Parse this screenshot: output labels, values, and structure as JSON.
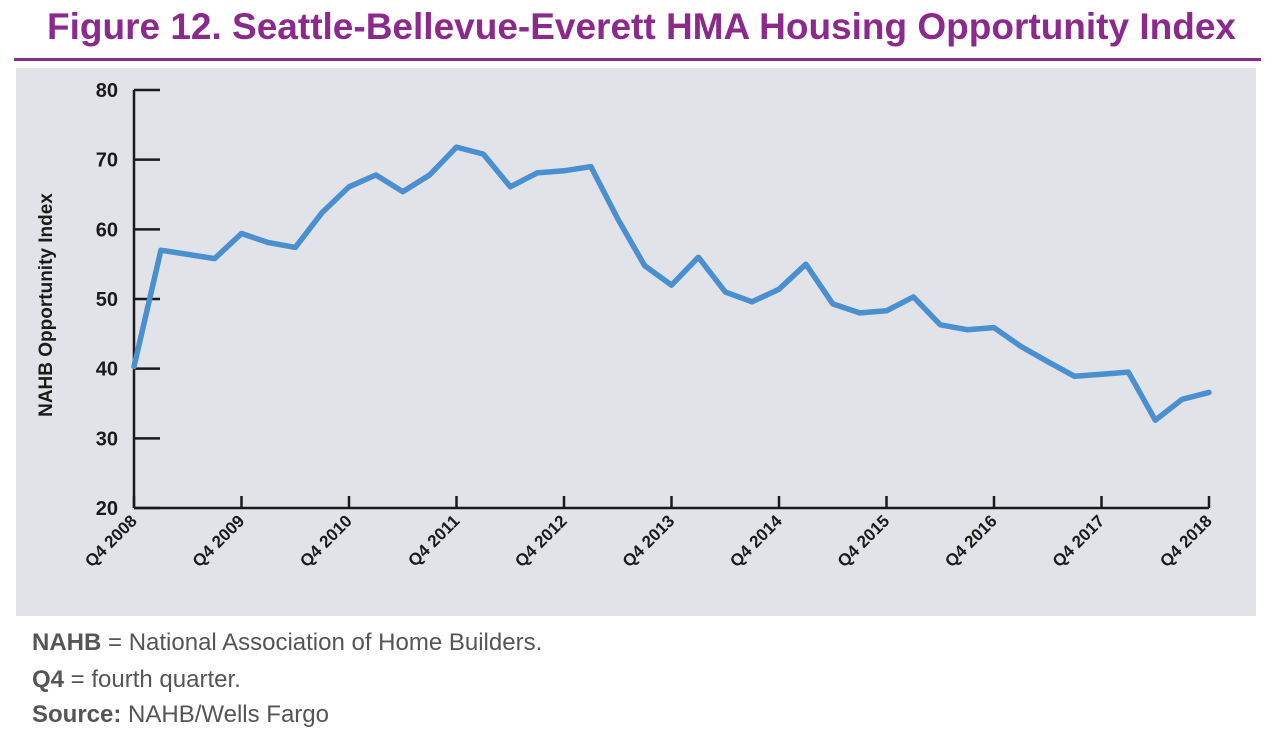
{
  "figure": {
    "title": "Figure 12. Seattle-Bellevue-Everett HMA Housing Opportunity Index"
  },
  "notes": [
    {
      "term": "NAHB",
      "sep": " = ",
      "text": "National Association of Home Builders."
    },
    {
      "term": "Q4",
      "sep": " = ",
      "text": "fourth quarter."
    },
    {
      "term": "Source:",
      "sep": " ",
      "text": "NAHB/Wells Fargo"
    }
  ],
  "colors": {
    "title": "#8b2a8c",
    "rule": "#8b2a8c",
    "plot_background": "#e2e3e8",
    "line": "#4a8fd0",
    "axis": "#1a1a1a"
  },
  "chart_data": {
    "type": "line",
    "title": "",
    "xlabel": "",
    "ylabel": "NAHB Opportunity Index",
    "ylim": [
      20,
      80
    ],
    "yticks": [
      20,
      30,
      40,
      50,
      60,
      70,
      80
    ],
    "grid": false,
    "x": [
      "Q4 2008",
      "Q1 2009",
      "Q2 2009",
      "Q3 2009",
      "Q4 2009",
      "Q1 2010",
      "Q2 2010",
      "Q3 2010",
      "Q4 2010",
      "Q1 2011",
      "Q2 2011",
      "Q3 2011",
      "Q4 2011",
      "Q1 2012",
      "Q2 2012",
      "Q3 2012",
      "Q4 2012",
      "Q1 2013",
      "Q2 2013",
      "Q3 2013",
      "Q4 2013",
      "Q1 2014",
      "Q2 2014",
      "Q3 2014",
      "Q4 2014",
      "Q1 2015",
      "Q2 2015",
      "Q3 2015",
      "Q4 2015",
      "Q1 2016",
      "Q2 2016",
      "Q3 2016",
      "Q4 2016",
      "Q1 2017",
      "Q2 2017",
      "Q3 2017",
      "Q4 2017",
      "Q1 2018",
      "Q2 2018",
      "Q3 2018",
      "Q4 2018"
    ],
    "xtick_labels": [
      "Q4 2008",
      "Q4 2009",
      "Q4 2010",
      "Q4 2011",
      "Q4 2012",
      "Q4 2013",
      "Q4 2014",
      "Q4 2015",
      "Q4 2016",
      "Q4 2017",
      "Q4 2018"
    ],
    "series": [
      {
        "values": [
          40.3,
          57.0,
          56.4,
          55.8,
          59.4,
          58.1,
          57.4,
          62.4,
          66.1,
          67.8,
          65.4,
          67.8,
          71.8,
          70.8,
          66.1,
          68.1,
          68.4,
          69.0,
          61.5,
          54.8,
          52.0,
          56.0,
          51.0,
          49.6,
          51.4,
          55.0,
          49.3,
          48.0,
          48.3,
          50.3,
          46.3,
          45.6,
          45.9,
          43.2,
          41.0,
          38.9,
          39.2,
          39.5,
          32.6,
          35.6,
          36.6
        ]
      }
    ]
  }
}
